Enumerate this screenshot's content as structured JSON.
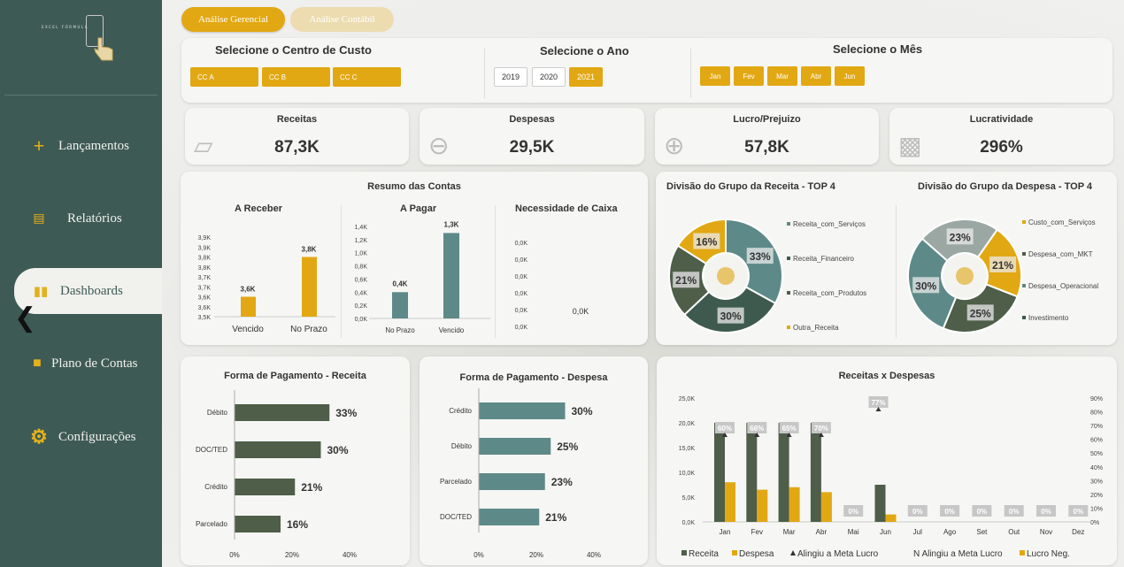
{
  "sidebar": {
    "logo_text": "EXCEL FÓRMULA",
    "items": [
      {
        "label": "Lançamentos",
        "icon": "plus-icon"
      },
      {
        "label": "Relatórios",
        "icon": "clipboard-icon"
      },
      {
        "label": "Dashboards",
        "icon": "bar-chart-icon"
      },
      {
        "label": "Plano de Contas",
        "icon": "folder-icon"
      },
      {
        "label": "Configurações",
        "icon": "gear-icon"
      }
    ]
  },
  "tabs": [
    "Análise Gerencial",
    "Análise Contábil"
  ],
  "filters": {
    "centro_title": "Selecione o Centro de Custo",
    "centros": [
      "CC A",
      "CC B",
      "CC C"
    ],
    "ano_title": "Selecione o Ano",
    "anos": [
      "2019",
      "2020",
      "2021"
    ],
    "ano_selected": "2021",
    "mes_title": "Selecione o Mês",
    "meses": [
      "Jan",
      "Fev",
      "Mar",
      "Abr",
      "Jun"
    ]
  },
  "kpis": [
    {
      "title": "Receitas",
      "value": "87,3K",
      "icon": "money-bills-icon"
    },
    {
      "title": "Despesas",
      "value": "29,5K",
      "icon": "zoom-out-icon"
    },
    {
      "title": "Lucro/Prejuizo",
      "value": "57,8K",
      "icon": "zoom-in-icon"
    },
    {
      "title": "Lucratividade",
      "value": "296%",
      "icon": "cash-icon"
    }
  ],
  "colors": {
    "gold": "#e2a813",
    "teal": "#5d8a88",
    "dark": "#3e5a4e",
    "olive": "#4e5e48",
    "gray": "#9aa7a3"
  },
  "chart_data": [
    {
      "id": "a_receber",
      "type": "bar",
      "title": "Resumo das Contas",
      "subtitle": "A Receber",
      "categories": [
        "Vencido",
        "No Prazo"
      ],
      "values": [
        3.6,
        3.8
      ],
      "data_labels": [
        "3,6K",
        "3,8K"
      ],
      "yticks": [
        "3,9K",
        "3,9K",
        "3,8K",
        "3,8K",
        "3,7K",
        "3,7K",
        "3,6K",
        "3,6K",
        "3,5K"
      ],
      "ylim": [
        3.5,
        3.9
      ]
    },
    {
      "id": "a_pagar",
      "type": "bar",
      "subtitle": "A Pagar",
      "categories": [
        "No Prazo",
        "Vencido"
      ],
      "values": [
        0.4,
        1.3
      ],
      "data_labels": [
        "0,4K",
        "1,3K"
      ],
      "yticks": [
        "1,4K",
        "1,2K",
        "1,0K",
        "0,8K",
        "0,6K",
        "0,4K",
        "0,2K",
        "0,0K"
      ],
      "ylim": [
        0,
        1.4
      ]
    },
    {
      "id": "necessidade",
      "type": "bar",
      "subtitle": "Necessidade de Caixa",
      "categories": [
        ""
      ],
      "values": [
        0
      ],
      "data_labels": [
        "0,0K"
      ],
      "yticks": [
        "0,0K",
        "0,0K",
        "0,0K",
        "0,0K",
        "0,0K",
        "0,0K"
      ]
    },
    {
      "id": "div_receita",
      "type": "pie",
      "title": "Divisão do Grupo da Receita - TOP 4",
      "labels": [
        "Receita_com_Serviços",
        "Receita_Financeiro",
        "Receita_com_Produtos",
        "Outra_Receita"
      ],
      "values": [
        33,
        30,
        21,
        16
      ]
    },
    {
      "id": "div_despesa",
      "type": "pie",
      "title": "Divisão do Grupo da Despesa - TOP 4",
      "labels": [
        "Custo_com_Serviços",
        "Despesa_com_MKT",
        "Despesa_Operacional",
        "Investimento"
      ],
      "values": [
        21,
        25,
        30,
        23
      ]
    },
    {
      "id": "pag_receita",
      "type": "bar",
      "orientation": "horizontal",
      "title": "Forma de Pagamento - Receita",
      "categories": [
        "Débito",
        "DOC/TED",
        "Crédito",
        "Parcelado"
      ],
      "values": [
        33,
        30,
        21,
        16
      ],
      "data_labels": [
        "33%",
        "30%",
        "21%",
        "16%"
      ],
      "xticks": [
        "0%",
        "20%",
        "40%"
      ],
      "xlim": [
        0,
        40
      ]
    },
    {
      "id": "pag_despesa",
      "type": "bar",
      "orientation": "horizontal",
      "title": "Forma de Pagamento - Despesa",
      "categories": [
        "Crédito",
        "Débito",
        "Parcelado",
        "DOC/TED"
      ],
      "values": [
        30,
        25,
        23,
        21
      ],
      "data_labels": [
        "30%",
        "25%",
        "23%",
        "21%"
      ],
      "xticks": [
        "0%",
        "20%",
        "40%"
      ],
      "xlim": [
        0,
        40
      ]
    },
    {
      "id": "rec_x_desp",
      "type": "bar",
      "title": "Receitas x Despesas",
      "categories": [
        "Jan",
        "Fev",
        "Mar",
        "Abr",
        "Mai",
        "Jun",
        "Jul",
        "Ago",
        "Set",
        "Out",
        "Nov",
        "Dez"
      ],
      "series": [
        {
          "name": "Receita",
          "values": [
            20,
            20,
            20,
            20,
            0,
            7.5,
            0,
            0,
            0,
            0,
            0,
            0
          ]
        },
        {
          "name": "Despesa",
          "values": [
            8,
            6.5,
            7,
            6,
            0,
            1.5,
            0,
            0,
            0,
            0,
            0,
            0
          ]
        }
      ],
      "markers": [
        "60%",
        "66%",
        "65%",
        "70%",
        "0%",
        "77%",
        "0%",
        "0%",
        "0%",
        "0%",
        "0%",
        "0%"
      ],
      "yticks": [
        "25,0K",
        "20,0K",
        "15,0K",
        "10,0K",
        "5,0K",
        "0,0K"
      ],
      "ylim": [
        0,
        25
      ],
      "y2ticks": [
        "90%",
        "80%",
        "70%",
        "60%",
        "50%",
        "40%",
        "30%",
        "20%",
        "10%",
        "0%"
      ],
      "legend": [
        "Receita",
        "Despesa",
        "Alingiu a Meta Lucro",
        "N Alingiu a Meta Lucro",
        "Lucro Neg."
      ]
    }
  ]
}
